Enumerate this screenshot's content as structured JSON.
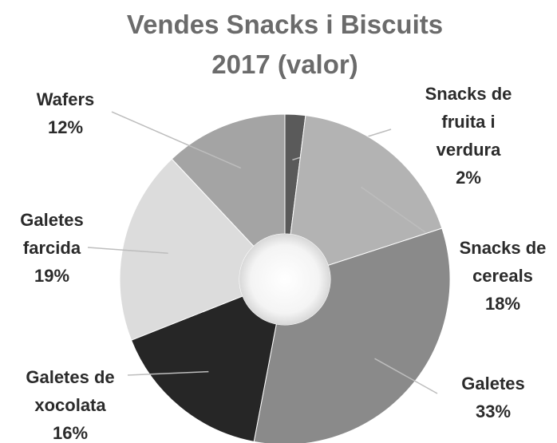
{
  "chart_data": {
    "type": "donut",
    "title": "Vendes Snacks i Biscuits 2017 (valor)",
    "categories": [
      "Snacks de fruita i verdura",
      "Snacks de cereals",
      "Galetes",
      "Galetes de xocolata",
      "Galetes farcida",
      "Wafers"
    ],
    "values": [
      2,
      18,
      33,
      16,
      19,
      12
    ],
    "value_labels": [
      "2%",
      "18%",
      "33%",
      "16%",
      "19%",
      "12%"
    ],
    "colors": [
      "#5a5a5a",
      "#b3b3b3",
      "#8a8a8a",
      "#262626",
      "#dcdcdc",
      "#a4a4a4"
    ]
  }
}
